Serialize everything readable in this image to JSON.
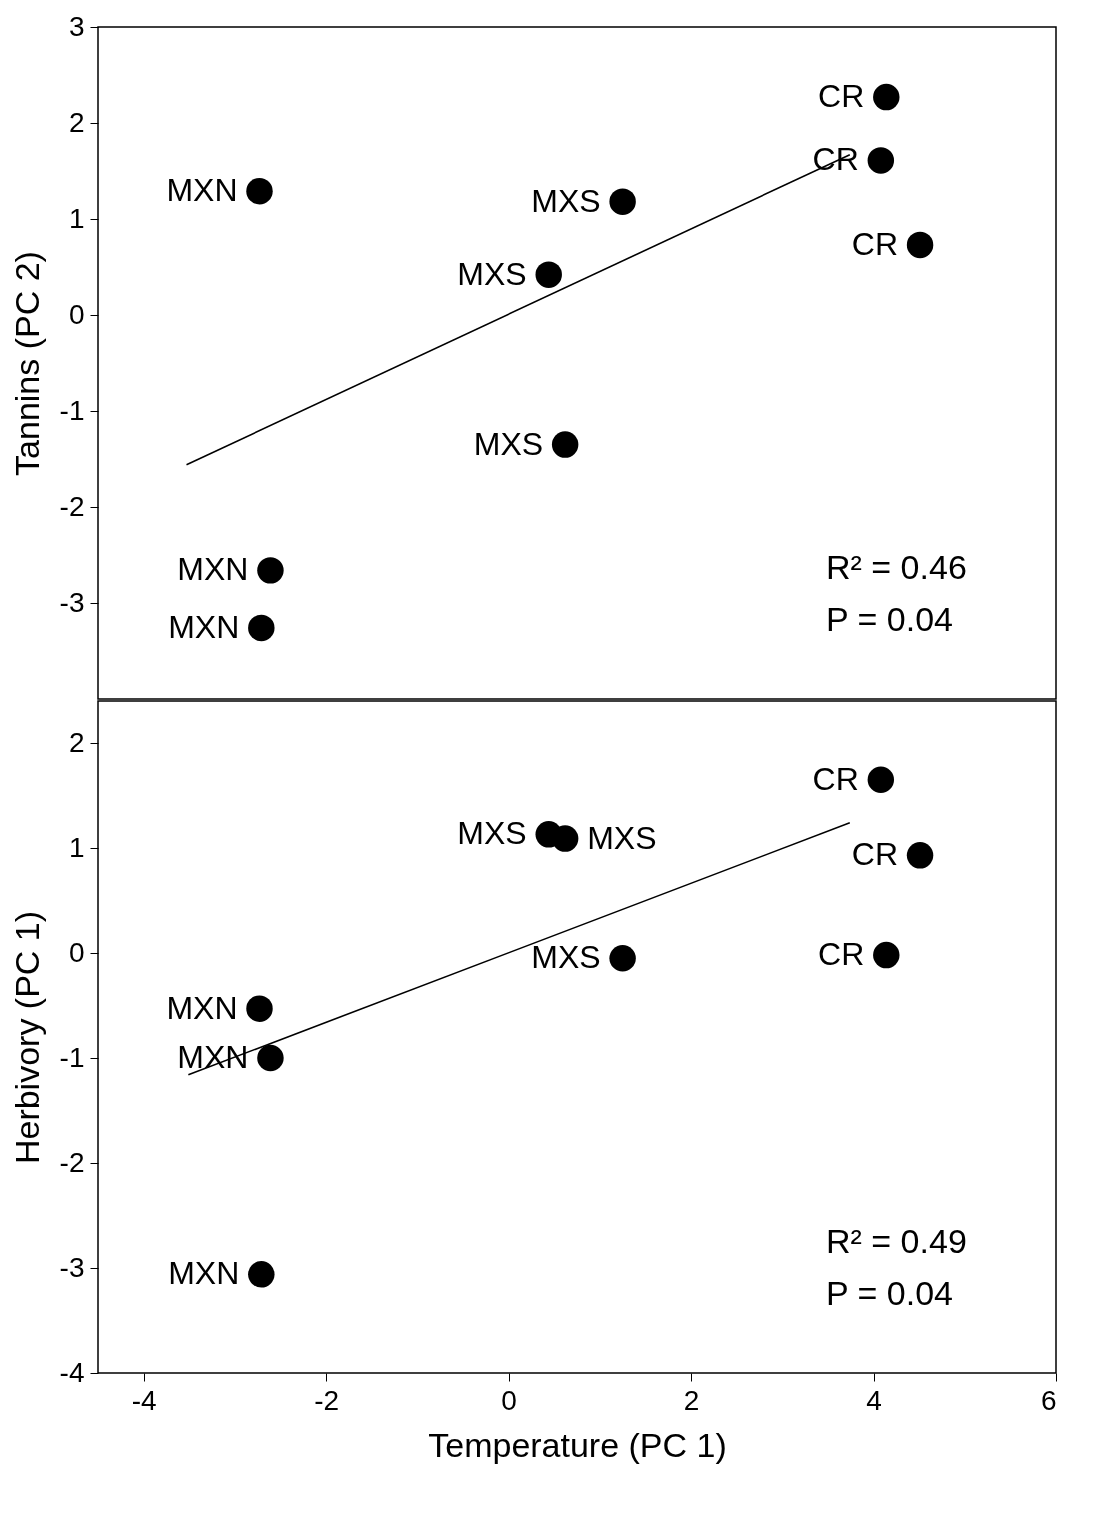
{
  "chart_data": [
    {
      "type": "scatter",
      "ylabel": "Tannins (PC 2)",
      "xlim": [
        -4.5,
        6
      ],
      "xticks": [
        -4,
        -2,
        0,
        2,
        4,
        6
      ],
      "ylim": [
        -4,
        3
      ],
      "yticks": [
        -3,
        -2,
        -1,
        0,
        1,
        2,
        3
      ],
      "tick_labels": "y",
      "grid": false,
      "series": [
        {
          "color": "#000000",
          "marker": "circle",
          "x": [
            -2.73,
            -2.61,
            -2.71,
            1.25,
            0.44,
            0.62,
            4.14,
            4.08,
            4.51
          ],
          "values": [
            1.29,
            -2.66,
            -3.26,
            1.18,
            0.42,
            -1.35,
            2.27,
            1.61,
            0.73
          ]
        },
        {
          "type": "line",
          "color": "#000000",
          "line_style": "solid",
          "x": [
            -3.53,
            3.74
          ],
          "values": [
            -1.56,
            1.67
          ]
        }
      ],
      "annotations": [
        {
          "text": "MXN",
          "x": -2.73,
          "y": 1.29
        },
        {
          "text": "MXN",
          "x": -2.61,
          "y": -2.66
        },
        {
          "text": "MXN",
          "x": -2.71,
          "y": -3.26
        },
        {
          "text": "MXS",
          "x": 1.25,
          "y": 1.18
        },
        {
          "text": "MXS",
          "x": 0.44,
          "y": 0.42
        },
        {
          "text": "MXS",
          "x": 0.62,
          "y": -1.35
        },
        {
          "text": "CR",
          "x": 4.14,
          "y": 2.27
        },
        {
          "text": "CR",
          "x": 4.08,
          "y": 1.61
        },
        {
          "text": "CR",
          "x": 4.51,
          "y": 0.73
        },
        "R² = 0.46",
        "P = 0.04"
      ]
    },
    {
      "type": "scatter",
      "xlabel": "Temperature (PC 1)",
      "ylabel": "Herbivory (PC 1)",
      "xlim": [
        -4.5,
        6
      ],
      "xticks": [
        -4,
        -2,
        0,
        2,
        4,
        6
      ],
      "ylim": [
        -4,
        2.4
      ],
      "yticks": [
        -4,
        -3,
        -2,
        -1,
        0,
        1,
        2
      ],
      "grid": false,
      "series": [
        {
          "color": "#000000",
          "marker": "circle",
          "x": [
            4.08,
            4.51,
            4.14,
            0.44,
            0.62,
            1.25,
            -2.73,
            -2.61,
            -2.71
          ],
          "values": [
            1.65,
            0.93,
            -0.02,
            1.13,
            1.09,
            -0.05,
            -0.53,
            -1.0,
            -3.06
          ]
        },
        {
          "type": "line",
          "color": "#000000",
          "line_style": "solid",
          "x": [
            -3.51,
            3.74
          ],
          "values": [
            -1.16,
            1.24
          ]
        }
      ],
      "annotations": [
        {
          "text": "CR",
          "x": 4.08,
          "y": 1.65
        },
        {
          "text": "CR",
          "x": 4.51,
          "y": 0.93
        },
        {
          "text": "CR",
          "x": 4.14,
          "y": -0.02
        },
        {
          "text": "MXS",
          "x": 0.44,
          "y": 1.13
        },
        {
          "text": "MXS",
          "x": 0.62,
          "y": 1.09
        },
        {
          "text": "MXS",
          "x": 1.25,
          "y": -0.05
        },
        {
          "text": "MXN",
          "x": -2.73,
          "y": -0.53
        },
        {
          "text": "MXN",
          "x": -2.61,
          "y": -1.0
        },
        {
          "text": "MXN",
          "x": -2.71,
          "y": -3.06
        },
        "R² = 0.49",
        "P = 0.04"
      ]
    }
  ]
}
